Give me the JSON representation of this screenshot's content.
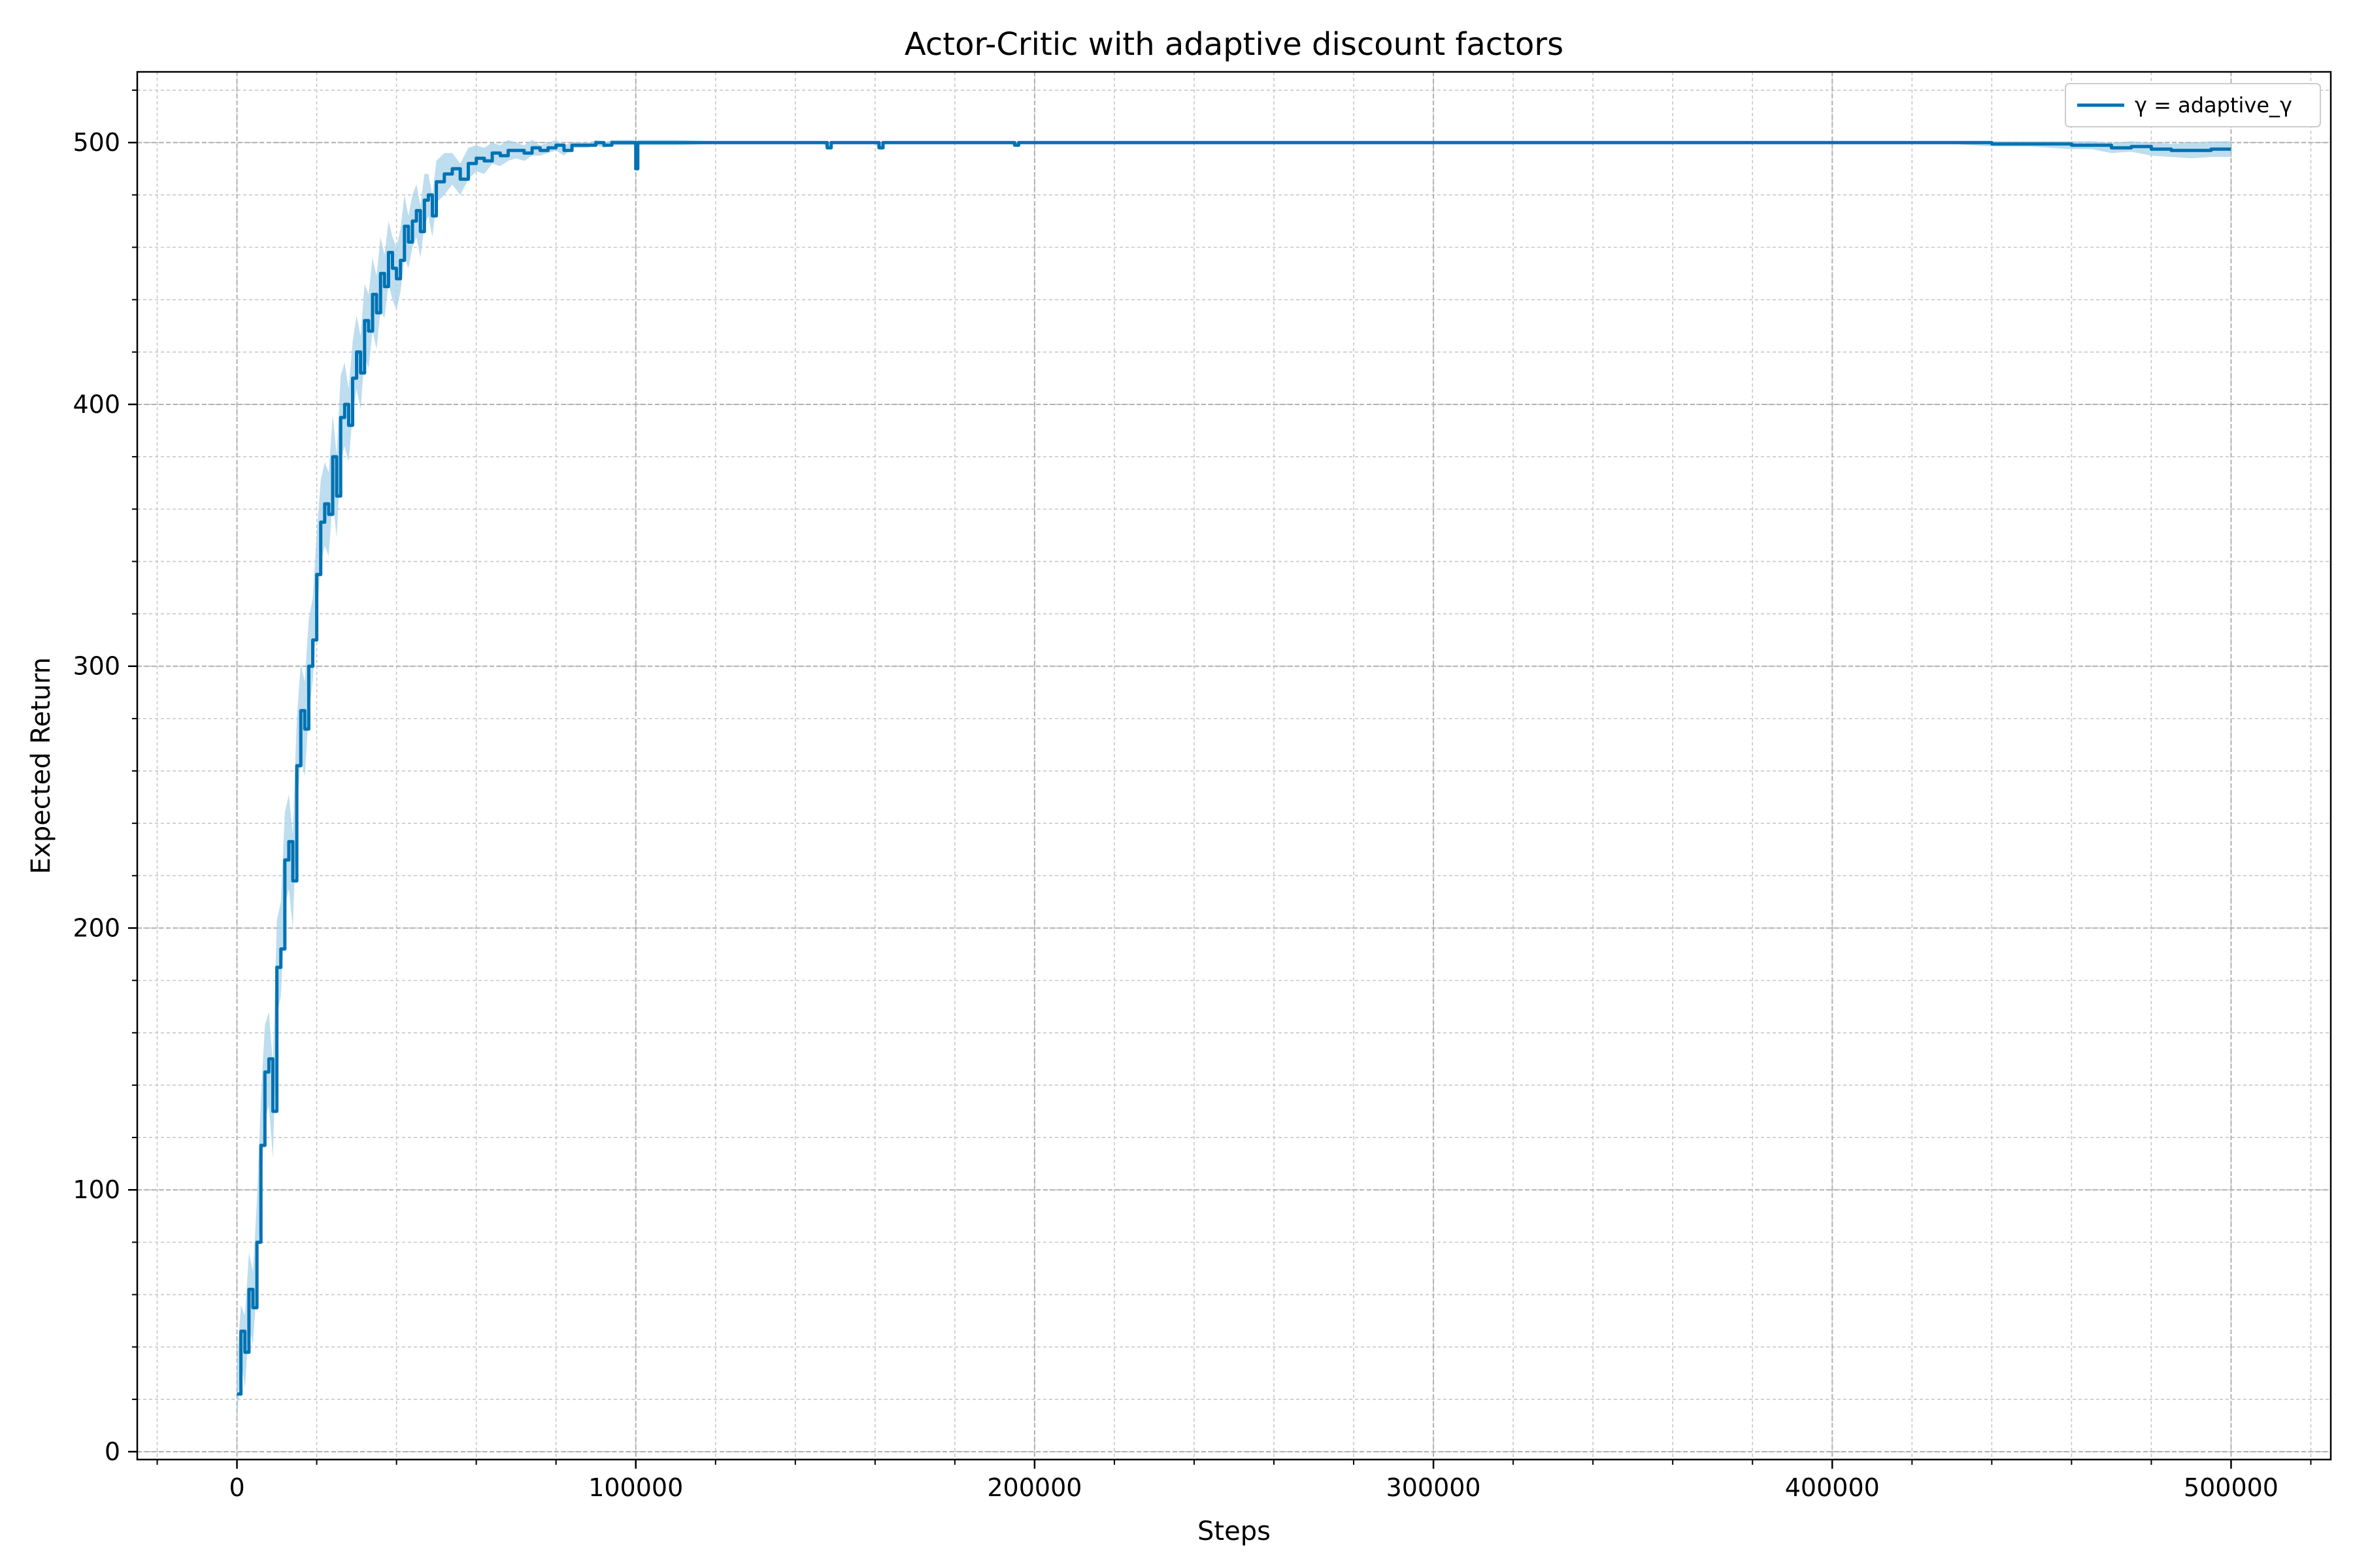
{
  "chart_data": {
    "type": "line",
    "title": "Actor-Critic with adaptive discount factors",
    "xlabel": "Steps",
    "ylabel": "Expected Return",
    "xlim": [
      -25000,
      525000
    ],
    "ylim": [
      -3,
      527
    ],
    "xticks": [
      0,
      100000,
      200000,
      300000,
      400000,
      500000
    ],
    "xtick_labels": [
      "0",
      "100000",
      "200000",
      "300000",
      "400000",
      "500000"
    ],
    "yticks": [
      0,
      100,
      200,
      300,
      400,
      500
    ],
    "ytick_labels": [
      "0",
      "100",
      "200",
      "300",
      "400",
      "500"
    ],
    "grid": true,
    "legend_position": "top-right",
    "line_color": "#0072b2",
    "band_color": "#a8d1ea",
    "series": [
      {
        "name": "γ = adaptive_γ",
        "x": [
          0,
          1000,
          2000,
          3000,
          4000,
          5000,
          6000,
          7000,
          8000,
          9000,
          10000,
          11000,
          12000,
          13000,
          14000,
          15000,
          16000,
          17000,
          18000,
          19000,
          20000,
          21000,
          22000,
          23000,
          24000,
          25000,
          26000,
          27000,
          28000,
          29000,
          30000,
          31000,
          32000,
          33000,
          34000,
          35000,
          36000,
          37000,
          38000,
          39000,
          40000,
          41000,
          42000,
          43000,
          44000,
          45000,
          46000,
          47000,
          48000,
          49000,
          50000,
          52000,
          54000,
          56000,
          58000,
          60000,
          62000,
          64000,
          66000,
          68000,
          70000,
          72000,
          74000,
          76000,
          78000,
          80000,
          82000,
          84000,
          86000,
          88000,
          90000,
          92000,
          94000,
          96000,
          98000,
          99500,
          100000,
          100500,
          102000,
          105000,
          110000,
          120000,
          130000,
          140000,
          147000,
          148000,
          149000,
          150000,
          160000,
          161000,
          162000,
          170000,
          180000,
          194000,
          195000,
          196000,
          200000,
          250000,
          300000,
          350000,
          400000,
          430000,
          440000,
          450000,
          460000,
          465000,
          470000,
          475000,
          480000,
          485000,
          490000,
          495000,
          500000
        ],
        "y": [
          22,
          46,
          38,
          62,
          55,
          80,
          117,
          145,
          150,
          130,
          185,
          192,
          226,
          233,
          218,
          262,
          283,
          276,
          300,
          310,
          335,
          355,
          362,
          358,
          380,
          365,
          395,
          400,
          392,
          410,
          420,
          412,
          432,
          428,
          442,
          435,
          450,
          445,
          458,
          452,
          448,
          455,
          468,
          462,
          470,
          474,
          466,
          478,
          480,
          472,
          485,
          488,
          490,
          486,
          492,
          494,
          493,
          496,
          495,
          497,
          497,
          496,
          498,
          497,
          498,
          499,
          497,
          499,
          499,
          499,
          500,
          499,
          500,
          500,
          500,
          500,
          490,
          500,
          500,
          500,
          500,
          500,
          500,
          500,
          500,
          498,
          500,
          500,
          500,
          498,
          500,
          500,
          500,
          500,
          499,
          500,
          500,
          500,
          500,
          500,
          500,
          500,
          499.5,
          499.5,
          499,
          499,
          498,
          498.5,
          497.5,
          497,
          497,
          497.5,
          497.5
        ],
        "band": [
          12,
          10,
          14,
          14,
          14,
          16,
          18,
          18,
          18,
          18,
          18,
          18,
          18,
          18,
          18,
          18,
          18,
          18,
          18,
          16,
          16,
          16,
          16,
          16,
          16,
          16,
          16,
          16,
          14,
          14,
          14,
          14,
          14,
          14,
          14,
          14,
          14,
          12,
          12,
          12,
          12,
          12,
          12,
          10,
          10,
          10,
          10,
          10,
          8,
          8,
          8,
          8,
          6,
          6,
          6,
          5,
          5,
          4,
          4,
          4,
          3,
          3,
          3,
          2,
          2,
          2,
          2,
          1,
          1,
          1,
          1,
          1,
          1,
          1,
          1,
          1,
          1,
          1,
          1,
          1,
          1,
          0.5,
          0.5,
          0.5,
          0.5,
          0.5,
          0.5,
          0.5,
          0.5,
          0.5,
          0.5,
          0.5,
          0.5,
          0.5,
          0.5,
          0.5,
          0.5,
          0.5,
          0.5,
          0.5,
          0.5,
          0.5,
          1,
          1,
          1.5,
          1.5,
          2,
          2,
          2.5,
          2.5,
          3,
          3,
          3
        ]
      }
    ]
  }
}
